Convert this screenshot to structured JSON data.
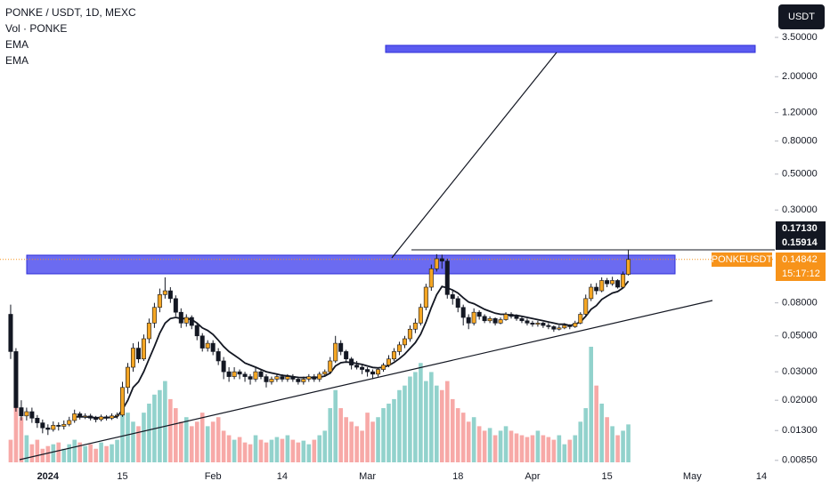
{
  "chart_data": {
    "type": "candlestick",
    "title": "PONKE / USDT, 1D, MEXC",
    "legend": [
      "Vol · PONKE",
      "EMA",
      "EMA"
    ],
    "currency": "USDT",
    "log_scale": true,
    "ylim": [
      0.00776,
      5.96
    ],
    "yticks": [
      {
        "value": 3.5,
        "label": "3.50000"
      },
      {
        "value": 2,
        "label": "2.00000"
      },
      {
        "value": 1.2,
        "label": "1.20000"
      },
      {
        "value": 0.8,
        "label": "0.80000"
      },
      {
        "value": 0.5,
        "label": "0.50000"
      },
      {
        "value": 0.3,
        "label": "0.30000"
      },
      {
        "value": 0.08,
        "label": "0.08000"
      },
      {
        "value": 0.05,
        "label": "0.05000"
      },
      {
        "value": 0.03,
        "label": "0.03000"
      },
      {
        "value": 0.02,
        "label": "0.02000"
      },
      {
        "value": 0.013,
        "label": "0.01300"
      },
      {
        "value": 0.0085,
        "label": "0.00850"
      }
    ],
    "xlim": [
      -2,
      143.5
    ],
    "xticks": [
      {
        "value": 7,
        "label": "2024"
      },
      {
        "value": 21,
        "label": "15"
      },
      {
        "value": 38,
        "label": "Feb"
      },
      {
        "value": 51,
        "label": "14"
      },
      {
        "value": 67,
        "label": "Mar"
      },
      {
        "value": 84,
        "label": "18"
      },
      {
        "value": 98,
        "label": "Apr"
      },
      {
        "value": 112,
        "label": "15"
      },
      {
        "value": 128,
        "label": "May"
      },
      {
        "value": 141,
        "label": "14"
      }
    ],
    "up_color": "#f5a623",
    "down_color": "#131722",
    "price_labels": [
      {
        "value": 0.1713,
        "label": "0.17130"
      },
      {
        "value": 0.15914,
        "label": "0.15914"
      }
    ],
    "symbol_label": "PONKEUSDT",
    "last_price": {
      "value": 0.14842,
      "label": "0.14842"
    },
    "countdown": "15:17:12",
    "candles": [
      [
        0.068,
        0.078,
        0.036,
        0.04
      ],
      [
        0.04,
        0.042,
        0.017,
        0.018
      ],
      [
        0.018,
        0.02,
        0.015,
        0.016
      ],
      [
        0.016,
        0.018,
        0.015,
        0.017
      ],
      [
        0.017,
        0.018,
        0.0145,
        0.0155
      ],
      [
        0.0155,
        0.0162,
        0.0135,
        0.0145
      ],
      [
        0.0145,
        0.0152,
        0.0125,
        0.0135
      ],
      [
        0.0135,
        0.0142,
        0.0122,
        0.0132
      ],
      [
        0.0132,
        0.0148,
        0.0128,
        0.014
      ],
      [
        0.014,
        0.0146,
        0.013,
        0.0138
      ],
      [
        0.0138,
        0.015,
        0.0132,
        0.0142
      ],
      [
        0.0142,
        0.0158,
        0.0138,
        0.015
      ],
      [
        0.015,
        0.0175,
        0.0145,
        0.0165
      ],
      [
        0.0165,
        0.017,
        0.0152,
        0.0158
      ],
      [
        0.0158,
        0.0166,
        0.0153,
        0.016
      ],
      [
        0.016,
        0.0165,
        0.015,
        0.0155
      ],
      [
        0.0155,
        0.016,
        0.0146,
        0.0152
      ],
      [
        0.0152,
        0.0163,
        0.0148,
        0.0158
      ],
      [
        0.0158,
        0.0162,
        0.015,
        0.0155
      ],
      [
        0.0155,
        0.0166,
        0.0151,
        0.016
      ],
      [
        0.016,
        0.0168,
        0.0154,
        0.0162
      ],
      [
        0.0162,
        0.026,
        0.0158,
        0.024
      ],
      [
        0.024,
        0.034,
        0.022,
        0.032
      ],
      [
        0.032,
        0.045,
        0.03,
        0.042
      ],
      [
        0.042,
        0.046,
        0.034,
        0.036
      ],
      [
        0.036,
        0.051,
        0.035,
        0.048
      ],
      [
        0.048,
        0.064,
        0.045,
        0.06
      ],
      [
        0.06,
        0.08,
        0.056,
        0.075
      ],
      [
        0.075,
        0.098,
        0.07,
        0.09
      ],
      [
        0.09,
        0.115,
        0.085,
        0.095
      ],
      [
        0.095,
        0.1,
        0.08,
        0.085
      ],
      [
        0.085,
        0.089,
        0.066,
        0.07
      ],
      [
        0.07,
        0.074,
        0.056,
        0.06
      ],
      [
        0.06,
        0.068,
        0.057,
        0.065
      ],
      [
        0.065,
        0.067,
        0.055,
        0.058
      ],
      [
        0.058,
        0.06,
        0.047,
        0.05
      ],
      [
        0.05,
        0.052,
        0.04,
        0.042
      ],
      [
        0.042,
        0.047,
        0.04,
        0.045
      ],
      [
        0.045,
        0.047,
        0.038,
        0.04
      ],
      [
        0.04,
        0.042,
        0.033,
        0.035
      ],
      [
        0.035,
        0.037,
        0.027,
        0.03
      ],
      [
        0.03,
        0.032,
        0.026,
        0.028
      ],
      [
        0.028,
        0.032,
        0.027,
        0.03
      ],
      [
        0.03,
        0.031,
        0.027,
        0.029
      ],
      [
        0.029,
        0.03,
        0.026,
        0.028
      ],
      [
        0.028,
        0.029,
        0.025,
        0.027
      ],
      [
        0.027,
        0.032,
        0.026,
        0.03
      ],
      [
        0.03,
        0.031,
        0.027,
        0.028
      ],
      [
        0.028,
        0.029,
        0.024,
        0.026
      ],
      [
        0.026,
        0.028,
        0.025,
        0.027
      ],
      [
        0.027,
        0.029,
        0.026,
        0.028
      ],
      [
        0.028,
        0.029,
        0.026,
        0.027
      ],
      [
        0.027,
        0.029,
        0.026,
        0.028
      ],
      [
        0.028,
        0.029,
        0.026,
        0.027
      ],
      [
        0.027,
        0.028,
        0.025,
        0.026
      ],
      [
        0.026,
        0.028,
        0.025,
        0.027
      ],
      [
        0.027,
        0.029,
        0.026,
        0.028
      ],
      [
        0.028,
        0.029,
        0.026,
        0.027
      ],
      [
        0.027,
        0.03,
        0.026,
        0.029
      ],
      [
        0.029,
        0.031,
        0.028,
        0.03
      ],
      [
        0.03,
        0.037,
        0.029,
        0.035
      ],
      [
        0.035,
        0.05,
        0.034,
        0.045
      ],
      [
        0.045,
        0.047,
        0.038,
        0.04
      ],
      [
        0.04,
        0.041,
        0.034,
        0.036
      ],
      [
        0.036,
        0.037,
        0.031,
        0.033
      ],
      [
        0.033,
        0.035,
        0.031,
        0.032
      ],
      [
        0.032,
        0.033,
        0.029,
        0.031
      ],
      [
        0.031,
        0.032,
        0.028,
        0.03
      ],
      [
        0.03,
        0.031,
        0.027,
        0.029
      ],
      [
        0.029,
        0.032,
        0.028,
        0.031
      ],
      [
        0.031,
        0.034,
        0.03,
        0.033
      ],
      [
        0.033,
        0.038,
        0.032,
        0.036
      ],
      [
        0.036,
        0.042,
        0.035,
        0.04
      ],
      [
        0.04,
        0.046,
        0.038,
        0.044
      ],
      [
        0.044,
        0.05,
        0.042,
        0.048
      ],
      [
        0.048,
        0.058,
        0.046,
        0.055
      ],
      [
        0.055,
        0.064,
        0.052,
        0.06
      ],
      [
        0.06,
        0.079,
        0.058,
        0.075
      ],
      [
        0.075,
        0.105,
        0.072,
        0.1
      ],
      [
        0.1,
        0.138,
        0.095,
        0.13
      ],
      [
        0.13,
        0.16,
        0.125,
        0.15
      ],
      [
        0.15,
        0.159,
        0.13,
        0.145
      ],
      [
        0.145,
        0.15,
        0.085,
        0.09
      ],
      [
        0.09,
        0.095,
        0.078,
        0.085
      ],
      [
        0.085,
        0.088,
        0.07,
        0.075
      ],
      [
        0.075,
        0.078,
        0.058,
        0.065
      ],
      [
        0.065,
        0.068,
        0.055,
        0.06
      ],
      [
        0.06,
        0.074,
        0.058,
        0.07
      ],
      [
        0.07,
        0.072,
        0.063,
        0.066
      ],
      [
        0.066,
        0.068,
        0.06,
        0.062
      ],
      [
        0.062,
        0.066,
        0.06,
        0.064
      ],
      [
        0.064,
        0.065,
        0.058,
        0.06
      ],
      [
        0.06,
        0.065,
        0.059,
        0.063
      ],
      [
        0.063,
        0.07,
        0.062,
        0.068
      ],
      [
        0.068,
        0.07,
        0.064,
        0.066
      ],
      [
        0.066,
        0.068,
        0.062,
        0.064
      ],
      [
        0.064,
        0.066,
        0.06,
        0.062
      ],
      [
        0.062,
        0.064,
        0.058,
        0.06
      ],
      [
        0.06,
        0.062,
        0.057,
        0.059
      ],
      [
        0.059,
        0.062,
        0.057,
        0.06
      ],
      [
        0.06,
        0.061,
        0.056,
        0.058
      ],
      [
        0.058,
        0.06,
        0.055,
        0.057
      ],
      [
        0.057,
        0.058,
        0.053,
        0.055
      ],
      [
        0.055,
        0.058,
        0.054,
        0.056
      ],
      [
        0.056,
        0.06,
        0.055,
        0.058
      ],
      [
        0.058,
        0.059,
        0.055,
        0.057
      ],
      [
        0.057,
        0.062,
        0.056,
        0.06
      ],
      [
        0.06,
        0.07,
        0.059,
        0.068
      ],
      [
        0.068,
        0.09,
        0.066,
        0.085
      ],
      [
        0.085,
        0.105,
        0.082,
        0.1
      ],
      [
        0.1,
        0.106,
        0.09,
        0.095
      ],
      [
        0.095,
        0.115,
        0.093,
        0.11
      ],
      [
        0.11,
        0.114,
        0.1,
        0.105
      ],
      [
        0.105,
        0.116,
        0.102,
        0.11
      ],
      [
        0.11,
        0.112,
        0.098,
        0.1
      ],
      [
        0.1,
        0.125,
        0.099,
        0.12
      ],
      [
        0.12,
        0.1713,
        0.118,
        0.14842
      ]
    ],
    "volume": [
      25,
      75,
      50,
      30,
      20,
      25,
      15,
      18,
      20,
      22,
      15,
      20,
      25,
      22,
      18,
      20,
      15,
      22,
      18,
      20,
      25,
      70,
      55,
      45,
      40,
      55,
      65,
      75,
      80,
      90,
      70,
      60,
      45,
      50,
      40,
      45,
      55,
      40,
      45,
      50,
      35,
      30,
      25,
      28,
      22,
      20,
      30,
      25,
      22,
      25,
      28,
      26,
      30,
      25,
      22,
      24,
      20,
      25,
      30,
      35,
      60,
      80,
      60,
      50,
      45,
      40,
      35,
      55,
      45,
      50,
      60,
      65,
      70,
      80,
      85,
      95,
      100,
      110,
      90,
      100,
      85,
      80,
      90,
      70,
      60,
      55,
      45,
      50,
      40,
      35,
      38,
      30,
      35,
      40,
      35,
      32,
      30,
      28,
      30,
      35,
      30,
      28,
      25,
      30,
      20,
      25,
      30,
      45,
      60,
      128,
      85,
      65,
      50,
      40,
      30,
      35,
      42
    ],
    "ema": {
      "color": "#131722",
      "values": [
        null,
        null,
        null,
        null,
        null,
        null,
        null,
        null,
        null,
        null,
        null,
        null,
        0.0158,
        0.0158,
        0.0158,
        0.0157,
        0.0156,
        0.0156,
        0.0156,
        0.0157,
        0.0158,
        0.0175,
        0.02,
        0.024,
        0.026,
        0.03,
        0.036,
        0.043,
        0.052,
        0.06,
        0.064,
        0.065,
        0.064,
        0.064,
        0.063,
        0.06,
        0.056,
        0.054,
        0.051,
        0.047,
        0.043,
        0.04,
        0.038,
        0.036,
        0.034,
        0.033,
        0.032,
        0.031,
        0.03,
        0.0295,
        0.029,
        0.0285,
        0.0283,
        0.028,
        0.0277,
        0.0276,
        0.0277,
        0.0276,
        0.0278,
        0.0282,
        0.0294,
        0.0326,
        0.0341,
        0.0345,
        0.0342,
        0.0338,
        0.0333,
        0.0326,
        0.0319,
        0.0317,
        0.032,
        0.0328,
        0.0343,
        0.0362,
        0.0385,
        0.0418,
        0.0454,
        0.0513,
        0.061,
        0.0748,
        0.0898,
        0.101,
        0.099,
        0.096,
        0.092,
        0.086,
        0.081,
        0.079,
        0.076,
        0.073,
        0.071,
        0.069,
        0.068,
        0.068,
        0.067,
        0.067,
        0.066,
        0.065,
        0.064,
        0.063,
        0.062,
        0.061,
        0.06,
        0.059,
        0.059,
        0.058,
        0.059,
        0.061,
        0.066,
        0.073,
        0.077,
        0.084,
        0.088,
        0.092,
        0.094,
        0.099,
        0.109
      ]
    }
  }
}
